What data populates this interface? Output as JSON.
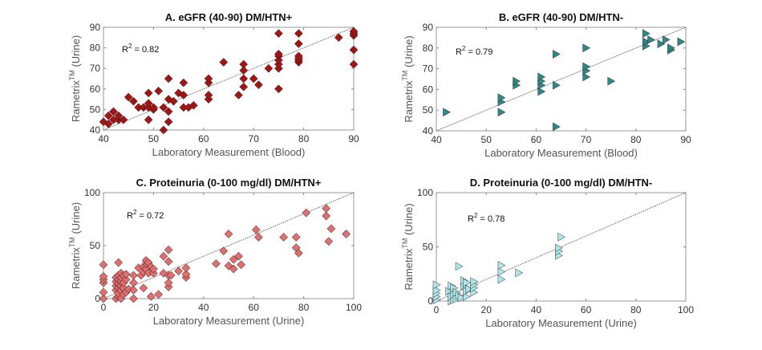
{
  "chart_data": [
    {
      "id": "A",
      "type": "scatter",
      "title": "A. eGFR (40-90) DM/HTN+",
      "xlabel": "Laboratory Measurement (Blood)",
      "ylabel": "Rametrix",
      "ylabel_sup": "TM",
      "ylabel_suffix": " (Urine)",
      "xlim": [
        40,
        90
      ],
      "ylim": [
        40,
        90
      ],
      "xticks": [
        40,
        50,
        60,
        70,
        80,
        90
      ],
      "yticks": [
        40,
        50,
        60,
        70,
        80,
        90
      ],
      "annotation": {
        "r2_label": "R",
        "r2_sup": "2",
        "r2_value": " = 0.82"
      },
      "marker": "diamond",
      "color": "#a31515",
      "fit_line": [
        [
          40,
          40
        ],
        [
          90,
          90
        ]
      ],
      "points": [
        [
          40,
          44
        ],
        [
          41,
          43
        ],
        [
          41,
          47
        ],
        [
          42,
          45
        ],
        [
          42,
          49
        ],
        [
          43,
          45
        ],
        [
          43,
          47
        ],
        [
          44,
          45
        ],
        [
          45,
          56
        ],
        [
          46,
          54
        ],
        [
          47,
          51
        ],
        [
          48,
          51
        ],
        [
          49,
          45
        ],
        [
          49,
          51
        ],
        [
          49,
          53
        ],
        [
          49,
          58
        ],
        [
          50,
          50
        ],
        [
          50,
          51
        ],
        [
          51,
          59
        ],
        [
          52,
          40
        ],
        [
          52,
          51
        ],
        [
          53,
          44
        ],
        [
          53,
          49
        ],
        [
          53,
          55
        ],
        [
          53,
          65
        ],
        [
          54,
          54
        ],
        [
          55,
          58
        ],
        [
          56,
          51
        ],
        [
          56,
          57
        ],
        [
          56,
          63
        ],
        [
          57,
          51
        ],
        [
          58,
          52
        ],
        [
          61,
          55
        ],
        [
          61,
          57
        ],
        [
          61,
          63
        ],
        [
          61,
          65
        ],
        [
          64,
          73
        ],
        [
          67,
          57
        ],
        [
          68,
          61
        ],
        [
          68,
          65
        ],
        [
          68,
          69
        ],
        [
          68,
          72
        ],
        [
          70,
          65
        ],
        [
          71,
          62
        ],
        [
          73,
          70
        ],
        [
          75,
          60
        ],
        [
          75,
          70
        ],
        [
          75,
          72
        ],
        [
          75,
          74
        ],
        [
          75,
          76
        ],
        [
          75,
          77
        ],
        [
          75,
          87
        ],
        [
          79,
          73
        ],
        [
          79,
          74
        ],
        [
          79,
          75
        ],
        [
          79,
          76
        ],
        [
          79,
          82
        ],
        [
          79,
          87
        ],
        [
          87,
          85
        ],
        [
          90,
          72
        ],
        [
          90,
          79
        ],
        [
          90,
          86
        ],
        [
          90,
          87
        ],
        [
          90,
          88
        ]
      ]
    },
    {
      "id": "B",
      "type": "scatter",
      "title": "B. eGFR (40-90) DM/HTN-",
      "xlabel": "Laboratory Measurement (Blood)",
      "ylabel": "Rametrix",
      "ylabel_sup": "TM",
      "ylabel_suffix": " (Urine)",
      "xlim": [
        40,
        90
      ],
      "ylim": [
        40,
        90
      ],
      "xticks": [
        40,
        50,
        60,
        70,
        80,
        90
      ],
      "yticks": [
        40,
        50,
        60,
        70,
        80,
        90
      ],
      "annotation": {
        "r2_label": "R",
        "r2_sup": "2",
        "r2_value": " = 0.79"
      },
      "marker": "triangle-right",
      "color": "#2a8a8a",
      "fit_line": [
        [
          40,
          40
        ],
        [
          90,
          90
        ]
      ],
      "points": [
        [
          42,
          49
        ],
        [
          53,
          49
        ],
        [
          53,
          54
        ],
        [
          53,
          56
        ],
        [
          56,
          62
        ],
        [
          56,
          64
        ],
        [
          61,
          59
        ],
        [
          61,
          62
        ],
        [
          61,
          64
        ],
        [
          61,
          66
        ],
        [
          64,
          42
        ],
        [
          64,
          62
        ],
        [
          64,
          77
        ],
        [
          70,
          66
        ],
        [
          70,
          69
        ],
        [
          70,
          71
        ],
        [
          70,
          80
        ],
        [
          75,
          64
        ],
        [
          82,
          81
        ],
        [
          82,
          83
        ],
        [
          82,
          87
        ],
        [
          83,
          84
        ],
        [
          85,
          82
        ],
        [
          86,
          84
        ],
        [
          87,
          79
        ],
        [
          87,
          80
        ],
        [
          89,
          83
        ]
      ]
    },
    {
      "id": "C",
      "type": "scatter",
      "title": "C. Proteinuria (0-100 mg/dl) DM/HTN+",
      "xlabel": "Laboratory Measurement (Urine)",
      "ylabel": "Rametrix",
      "ylabel_sup": "TM",
      "ylabel_suffix": " (Urine)",
      "xlim": [
        0,
        100
      ],
      "ylim": [
        0,
        100
      ],
      "xticks": [
        0,
        20,
        40,
        60,
        80,
        100
      ],
      "yticks": [
        0,
        50,
        100
      ],
      "annotation": {
        "r2_label": "R",
        "r2_sup": "2",
        "r2_value": " = 0.72"
      },
      "marker": "diamond",
      "color": "#e07070",
      "fit_line": [
        [
          0,
          0
        ],
        [
          100,
          100
        ]
      ],
      "points": [
        [
          0,
          0
        ],
        [
          0,
          6
        ],
        [
          0,
          15
        ],
        [
          0,
          18
        ],
        [
          0,
          21
        ],
        [
          0,
          32
        ],
        [
          5,
          0
        ],
        [
          5,
          8
        ],
        [
          5,
          12
        ],
        [
          5,
          16
        ],
        [
          5,
          20
        ],
        [
          6,
          2
        ],
        [
          6,
          5
        ],
        [
          6,
          10
        ],
        [
          6,
          14
        ],
        [
          6,
          18
        ],
        [
          6,
          22
        ],
        [
          6,
          34
        ],
        [
          7,
          0
        ],
        [
          7,
          8
        ],
        [
          7,
          12
        ],
        [
          7,
          16
        ],
        [
          7,
          20
        ],
        [
          7,
          24
        ],
        [
          8,
          4
        ],
        [
          8,
          10
        ],
        [
          8,
          15
        ],
        [
          8,
          22
        ],
        [
          9,
          6
        ],
        [
          9,
          18
        ],
        [
          9,
          23
        ],
        [
          10,
          9
        ],
        [
          12,
          0
        ],
        [
          12,
          8
        ],
        [
          12,
          15
        ],
        [
          12,
          22
        ],
        [
          14,
          29
        ],
        [
          15,
          22
        ],
        [
          16,
          10
        ],
        [
          16,
          25
        ],
        [
          16,
          30
        ],
        [
          17,
          28
        ],
        [
          17,
          33
        ],
        [
          17,
          36
        ],
        [
          18,
          24
        ],
        [
          18,
          34
        ],
        [
          19,
          2
        ],
        [
          19,
          30
        ],
        [
          20,
          24
        ],
        [
          20,
          28
        ],
        [
          22,
          4
        ],
        [
          24,
          24
        ],
        [
          24,
          40
        ],
        [
          26,
          11
        ],
        [
          26,
          15
        ],
        [
          26,
          22
        ],
        [
          26,
          35
        ],
        [
          26,
          46
        ],
        [
          27,
          22
        ],
        [
          30,
          26
        ],
        [
          33,
          20
        ],
        [
          33,
          23
        ],
        [
          33,
          29
        ],
        [
          45,
          33
        ],
        [
          48,
          45
        ],
        [
          50,
          31
        ],
        [
          50,
          61
        ],
        [
          52,
          28
        ],
        [
          52,
          37
        ],
        [
          54,
          40
        ],
        [
          55,
          32
        ],
        [
          61,
          65
        ],
        [
          62,
          58
        ],
        [
          72,
          58
        ],
        [
          77,
          48
        ],
        [
          77,
          58
        ],
        [
          78,
          43
        ],
        [
          81,
          81
        ],
        [
          89,
          78
        ],
        [
          89,
          85
        ],
        [
          90,
          54
        ],
        [
          91,
          66
        ],
        [
          97,
          61
        ]
      ]
    },
    {
      "id": "D",
      "type": "scatter",
      "title": "D. Proteinuria (0-100 mg/dl) DM/HTN-",
      "xlabel": "Laboratory Measurement (Urine)",
      "ylabel": "Rametrix",
      "ylabel_sup": "TM",
      "ylabel_suffix": " (Urine)",
      "xlim": [
        0,
        100
      ],
      "ylim": [
        0,
        100
      ],
      "xticks": [
        0,
        20,
        40,
        60,
        80,
        100
      ],
      "yticks": [
        0,
        50,
        100
      ],
      "annotation": {
        "r2_label": "R",
        "r2_sup": "2",
        "r2_value": " = 0.78"
      },
      "marker": "triangle-right",
      "color": "#a8e8ec",
      "fit_line": [
        [
          0,
          0
        ],
        [
          100,
          100
        ]
      ],
      "points": [
        [
          0,
          1
        ],
        [
          0,
          4
        ],
        [
          0,
          7
        ],
        [
          0,
          10
        ],
        [
          0,
          15
        ],
        [
          5,
          9
        ],
        [
          6,
          0
        ],
        [
          6,
          4
        ],
        [
          6,
          14
        ],
        [
          7,
          1
        ],
        [
          7,
          6
        ],
        [
          7,
          12
        ],
        [
          8,
          2
        ],
        [
          8,
          8
        ],
        [
          9,
          32
        ],
        [
          9,
          5
        ],
        [
          10,
          3
        ],
        [
          11,
          14
        ],
        [
          11,
          19
        ],
        [
          12,
          4
        ],
        [
          12,
          9
        ],
        [
          12,
          17
        ],
        [
          13,
          11
        ],
        [
          15,
          8
        ],
        [
          15,
          12
        ],
        [
          15,
          15
        ],
        [
          15,
          18
        ],
        [
          26,
          20
        ],
        [
          26,
          27
        ],
        [
          26,
          33
        ],
        [
          33,
          26
        ],
        [
          49,
          42
        ],
        [
          49,
          46
        ],
        [
          49,
          49
        ],
        [
          50,
          59
        ]
      ]
    }
  ]
}
